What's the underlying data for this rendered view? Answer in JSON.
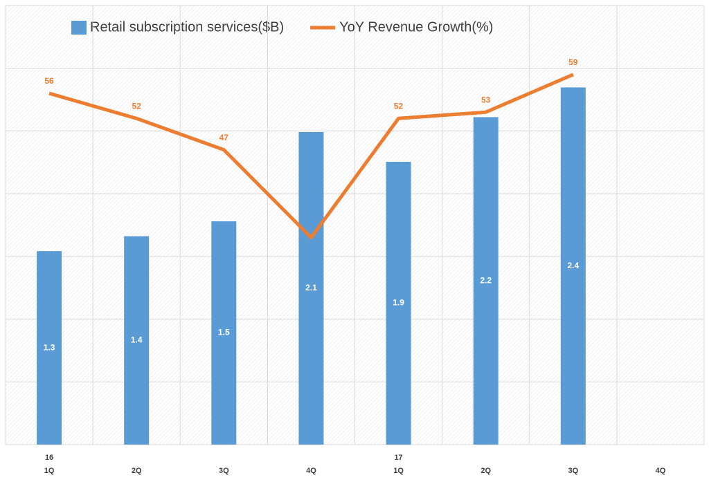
{
  "chart_data": {
    "type": "bar+line",
    "categories": [
      [
        "16",
        "1Q"
      ],
      [
        "2Q"
      ],
      [
        "3Q"
      ],
      [
        "4Q"
      ],
      [
        "17",
        "1Q"
      ],
      [
        "2Q"
      ],
      [
        "3Q"
      ],
      [
        "4Q"
      ]
    ],
    "ylim": [
      0,
      2.95
    ],
    "y2lim": [
      0,
      70
    ],
    "y2ticks": [
      0,
      10,
      20,
      30,
      40,
      50,
      60,
      70
    ],
    "grid": true,
    "series": [
      {
        "name": "Retail subscription services($B)",
        "type": "bar",
        "color": "#5b9bd5",
        "values": [
          1.3,
          1.4,
          1.5,
          2.1,
          1.9,
          2.2,
          2.4,
          null
        ],
        "value_labels": [
          "1.3",
          "1.4",
          "1.5",
          "2.1",
          "1.9",
          "2.2",
          "2.4",
          null
        ]
      },
      {
        "name": "YoY Revenue Growth(%)",
        "type": "line",
        "axis": "y2",
        "color": "#ed7d31",
        "values": [
          56,
          52,
          47,
          33,
          52,
          53,
          59,
          null
        ],
        "value_labels": [
          "56",
          "52",
          "47",
          null,
          "52",
          "53",
          "59",
          null
        ]
      }
    ]
  }
}
